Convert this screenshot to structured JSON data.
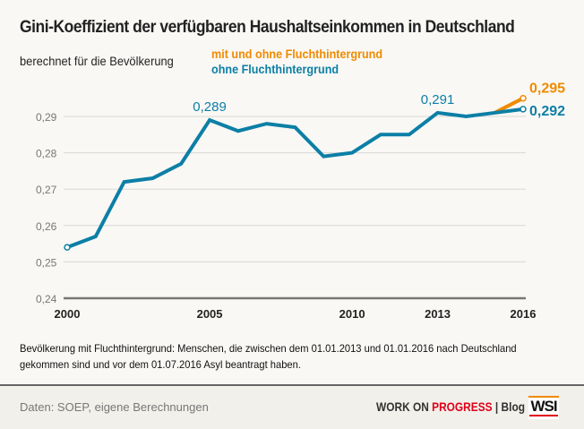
{
  "title": "Gini-Koeffizient der verfügbaren Haushaltseinkommen in Deutschland",
  "subtitle": "berechnet für die Bevölkerung",
  "note": "Bevölkerung mit Fluchthintergrund: Menschen, die zwischen dem 01.01.2013 und 01.01.2016 nach Deutschland gekommen sind und vor dem 01.07.2016 Asyl beantragt haben.",
  "footer": {
    "source": "Daten: SOEP, eigene Berechnungen",
    "brand_a": "WORK ON ",
    "brand_b": "PROGRESS",
    "brand_c": " | Blog",
    "logo": "WSI"
  },
  "colors": {
    "blue": "#0c7fa6",
    "orange": "#f08a00"
  },
  "chart_data": {
    "type": "line",
    "x": [
      2000,
      2001,
      2002,
      2003,
      2004,
      2005,
      2006,
      2007,
      2008,
      2009,
      2010,
      2011,
      2012,
      2013,
      2014,
      2015,
      2016
    ],
    "xticks": [
      "2000",
      "2005",
      "2010",
      "2013",
      "2016"
    ],
    "yticks": [
      "0,24",
      "0,25",
      "0,26",
      "0,27",
      "0,28",
      "0,29"
    ],
    "ylim": [
      0.24,
      0.29
    ],
    "grid": true,
    "series": [
      {
        "name": "mit und ohne Fluchthintergrund",
        "color": "#f08a00",
        "x": [
          2015,
          2016
        ],
        "values": [
          0.291,
          0.295
        ]
      },
      {
        "name": "ohne Fluchthintergrund",
        "color": "#0c7fa6",
        "x": [
          2000,
          2001,
          2002,
          2003,
          2004,
          2005,
          2006,
          2007,
          2008,
          2009,
          2010,
          2011,
          2012,
          2013,
          2014,
          2015,
          2016
        ],
        "values": [
          0.254,
          0.257,
          0.272,
          0.273,
          0.277,
          0.289,
          0.286,
          0.288,
          0.287,
          0.279,
          0.28,
          0.285,
          0.285,
          0.291,
          0.29,
          0.291,
          0.292
        ]
      }
    ],
    "annotations": [
      {
        "x": 2005,
        "label": "0,289"
      },
      {
        "x": 2013,
        "label": "0,291"
      },
      {
        "x": 2016,
        "label": "0,295",
        "series": 0
      },
      {
        "x": 2016,
        "label": "0,292",
        "series": 1
      }
    ]
  }
}
